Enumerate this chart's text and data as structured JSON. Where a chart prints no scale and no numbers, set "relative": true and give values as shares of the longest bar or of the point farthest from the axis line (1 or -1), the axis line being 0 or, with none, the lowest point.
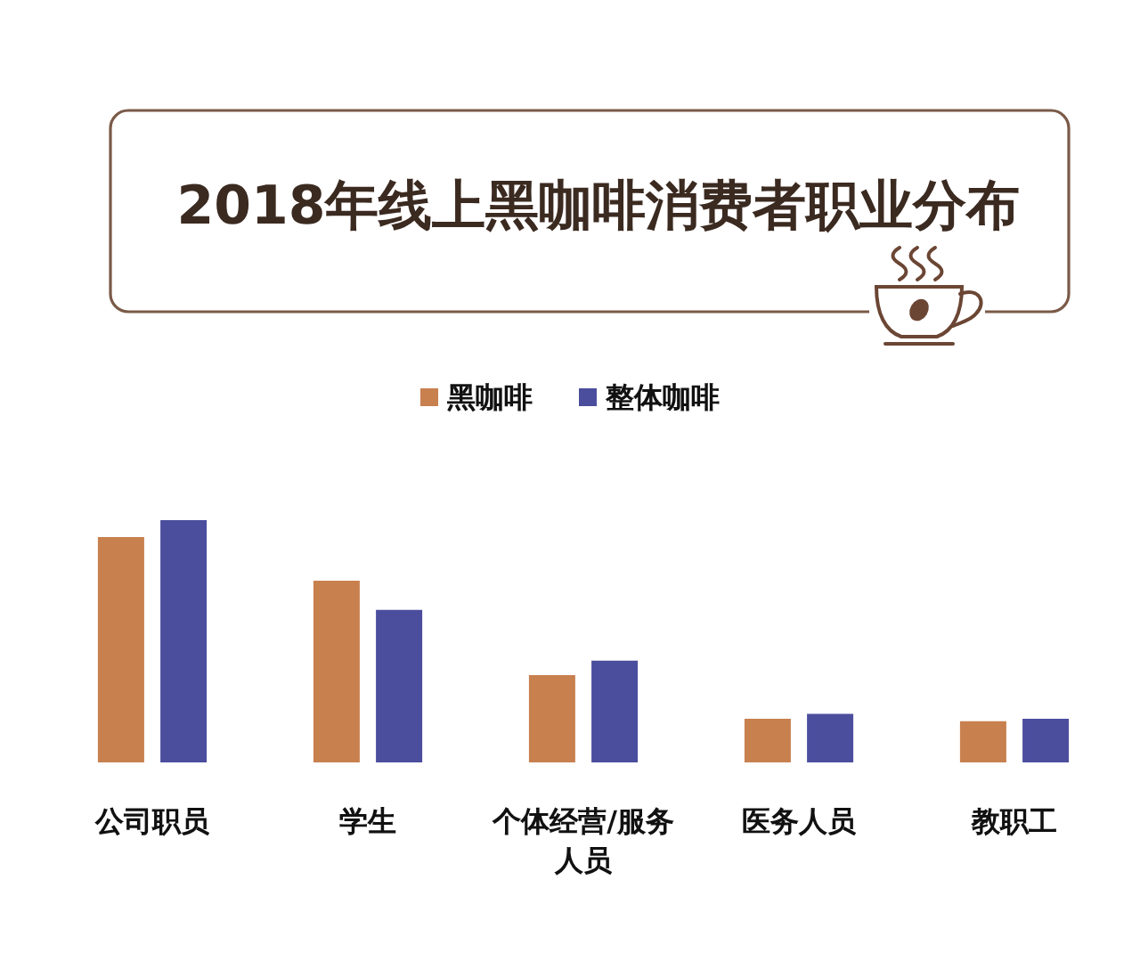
{
  "chart_data": {
    "type": "bar",
    "title": "2018年线上黑咖啡消费者职业分布",
    "categories": [
      "公司职员",
      "学生",
      "个体经营/服务人员",
      "医务人员",
      "教职工"
    ],
    "series": [
      {
        "name": "黑咖啡",
        "color": "#c8804f",
        "values": [
          0.93,
          0.75,
          0.36,
          0.18,
          0.17
        ]
      },
      {
        "name": "整体咖啡",
        "color": "#4b4e9d",
        "values": [
          1,
          0.63,
          0.42,
          0.2,
          0.18
        ]
      }
    ],
    "relative": true,
    "legend": "top"
  }
}
